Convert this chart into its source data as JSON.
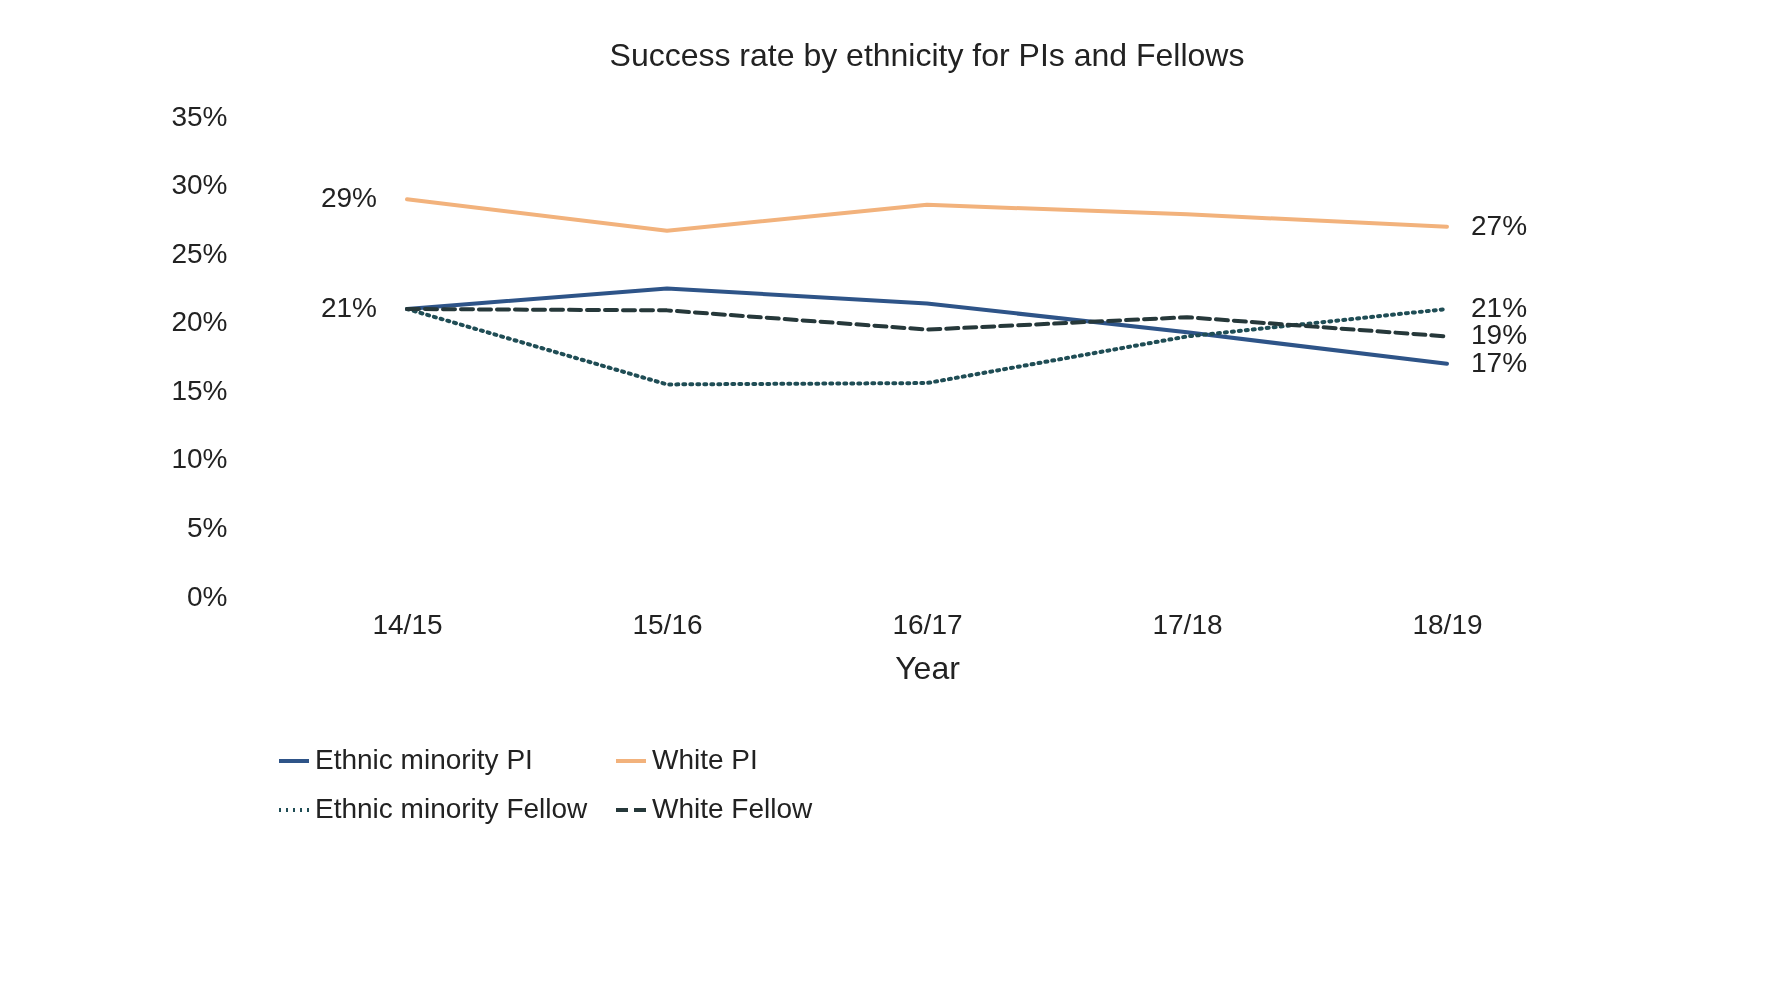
{
  "chart_data": {
    "type": "line",
    "title": "Success rate by ethnicity for PIs and Fellows",
    "xlabel": "Year",
    "categories": [
      "14/15",
      "15/16",
      "16/17",
      "17/18",
      "18/19"
    ],
    "ylim": [
      0,
      35
    ],
    "yticks": [
      {
        "value": 0,
        "label": "0%"
      },
      {
        "value": 5,
        "label": "5%"
      },
      {
        "value": 10,
        "label": "10%"
      },
      {
        "value": 15,
        "label": "15%"
      },
      {
        "value": 20,
        "label": "20%"
      },
      {
        "value": 25,
        "label": "25%"
      },
      {
        "value": 30,
        "label": "30%"
      },
      {
        "value": 35,
        "label": "35%"
      }
    ],
    "grid": false,
    "legend": "bottom",
    "marker": "none",
    "series": [
      {
        "name": "Ethnic minority PI",
        "color": "#2e5488",
        "line_style": "solid",
        "values": [
          21,
          22.5,
          21.4,
          19.3,
          17
        ],
        "value_labels": [
          "21%",
          null,
          null,
          null,
          "17%"
        ]
      },
      {
        "name": "White PI",
        "color": "#f2b27c",
        "line_style": "solid",
        "values": [
          29,
          26.7,
          28.6,
          27.9,
          27
        ],
        "value_labels": [
          "29%",
          null,
          null,
          null,
          "27%"
        ]
      },
      {
        "name": "Ethnic minority Fellow",
        "color": "#1f4d55",
        "line_style": "dotted",
        "values": [
          21,
          15.5,
          15.6,
          19,
          21
        ],
        "value_labels": [
          null,
          null,
          null,
          null,
          "21%"
        ]
      },
      {
        "name": "White Fellow",
        "color": "#26383a",
        "line_style": "dashed",
        "values": [
          21,
          20.9,
          19.5,
          20.4,
          19
        ],
        "value_labels": [
          null,
          null,
          null,
          null,
          "19%"
        ]
      }
    ]
  }
}
